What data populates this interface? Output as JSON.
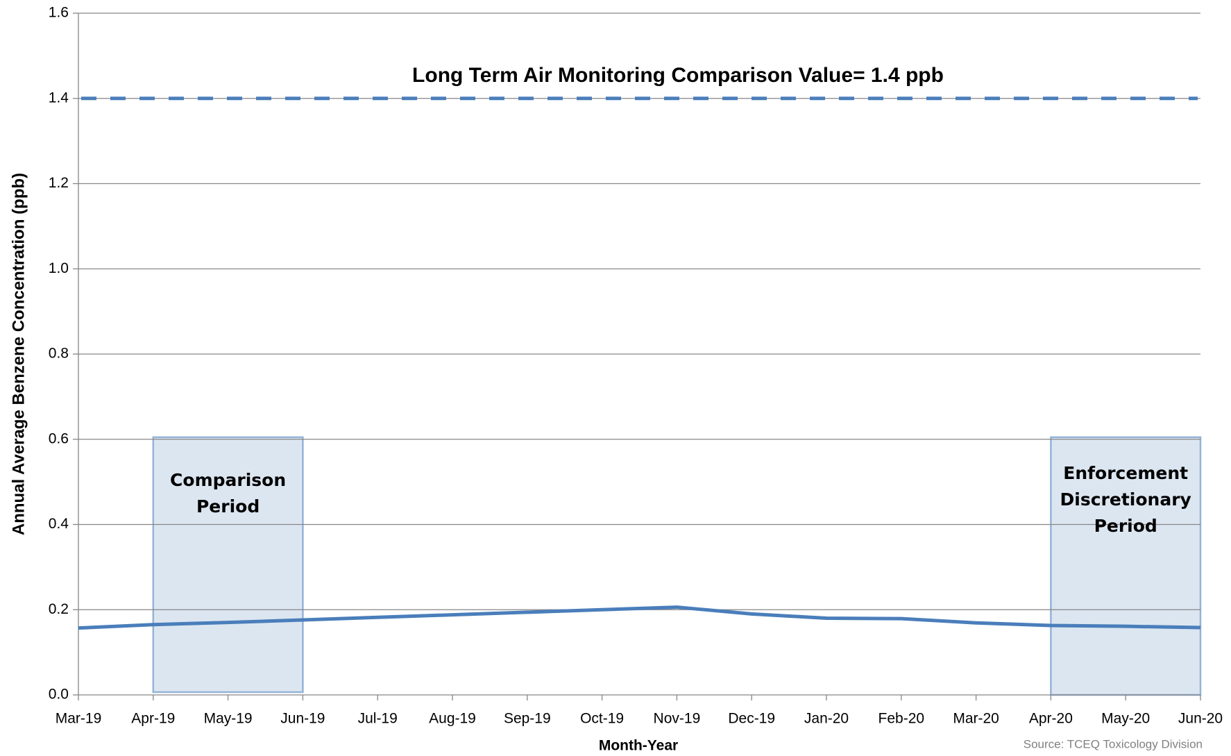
{
  "chart_data": {
    "type": "line",
    "y_label": "Annual Average Benzene Concentration (ppb)",
    "x_label": "Month-Year",
    "source": "Source: TCEQ Toxicology Division",
    "categories": [
      "Mar-19",
      "Apr-19",
      "May-19",
      "Jun-19",
      "Jul-19",
      "Aug-19",
      "Sep-19",
      "Oct-19",
      "Nov-19",
      "Dec-19",
      "Jan-20",
      "Feb-20",
      "Mar-20",
      "Apr-20",
      "May-20",
      "Jun-20"
    ],
    "series": [
      {
        "color": "#4a7ebb",
        "values": [
          0.157,
          0.165,
          0.17,
          0.176,
          0.182,
          0.188,
          0.194,
          0.2,
          0.206,
          0.19,
          0.18,
          0.179,
          0.169,
          0.163,
          0.161,
          0.158
        ]
      }
    ],
    "ylim": [
      0,
      1.6
    ],
    "yticks": [
      {
        "value": 0,
        "label": "0.0"
      },
      0.2,
      0.4,
      0.6,
      0.8,
      {
        "value": 1,
        "label": "1.0"
      },
      1.2,
      1.4,
      1.6
    ],
    "grid": true,
    "reference_line": {
      "value": 1.4,
      "label": "Long Term Air Monitoring Comparison Value= 1.4 ppb",
      "color": "#4a7ebb"
    },
    "regions": [
      {
        "label": "Comparison Period",
        "start": "Apr-19",
        "end": "Jun-19"
      },
      {
        "label": "Enforcement Discretionary Period",
        "start": "Apr-20",
        "end": "Jun-20"
      }
    ]
  }
}
